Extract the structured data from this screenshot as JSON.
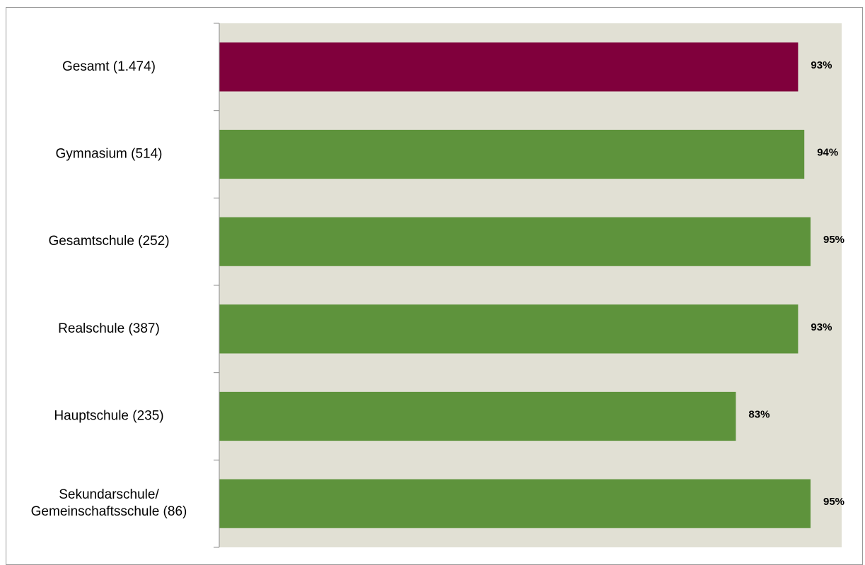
{
  "chart_data": {
    "type": "bar",
    "orientation": "horizontal",
    "title": "",
    "categories": [
      "Gesamt (1.474)",
      "Gymnasium (514)",
      "Gesamtschule (252)",
      "Realschule (387)",
      "Hauptschule (235)",
      "Sekundarschule/ Gemeinschaftsschule (86)"
    ],
    "category_lines": [
      [
        "Gesamt (1.474)"
      ],
      [
        "Gymnasium (514)"
      ],
      [
        "Gesamtschule (252)"
      ],
      [
        "Realschule (387)"
      ],
      [
        "Hauptschule (235)"
      ],
      [
        "Sekundarschule/",
        "Gemeinschaftsschule (86)"
      ]
    ],
    "values": [
      93,
      94,
      95,
      93,
      83,
      95
    ],
    "value_labels": [
      "93%",
      "94%",
      "95%",
      "93%",
      "83%",
      "95%"
    ],
    "unit": "%",
    "xlim": [
      0,
      100
    ],
    "grid": false,
    "legend": "none",
    "colors": {
      "highlight": "#80003c",
      "bars": "#5e933c",
      "plot_background": "#e1e0d4",
      "axis": "#8c8c8c"
    },
    "highlight_index": 0
  }
}
